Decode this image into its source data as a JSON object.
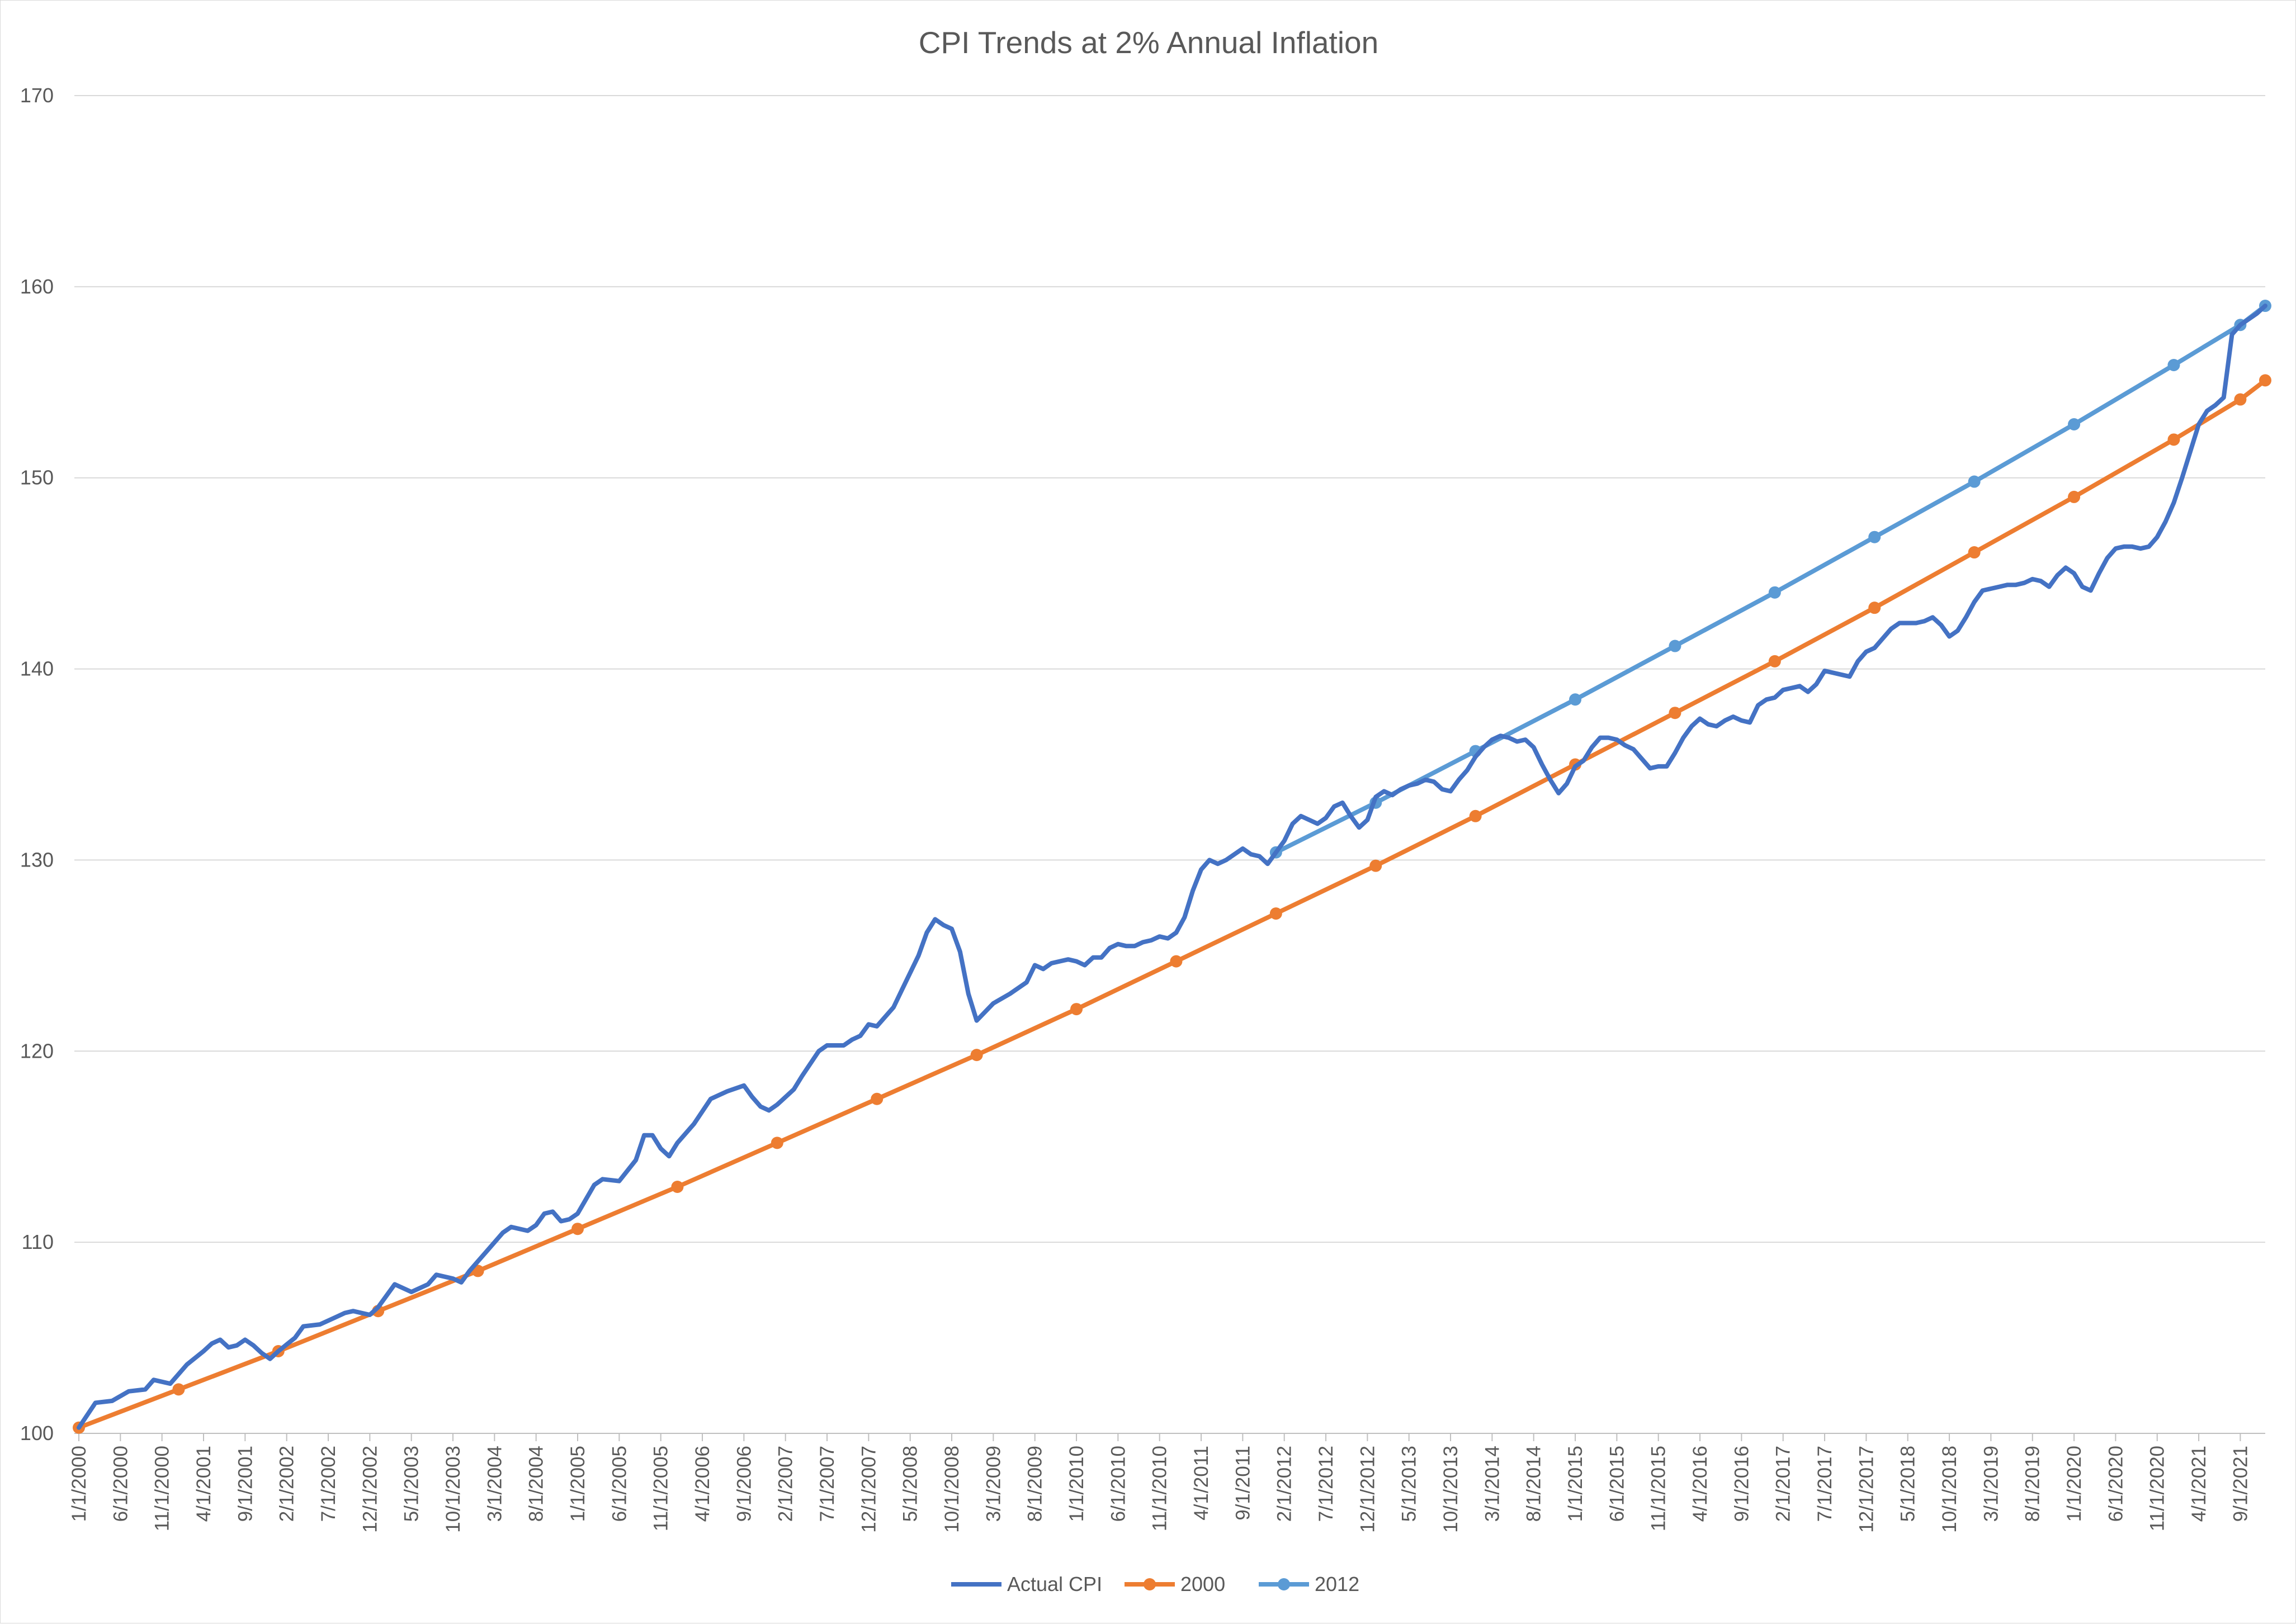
{
  "chart_data": {
    "type": "line",
    "title": "CPI Trends at 2% Annual Inflation",
    "xlabel": "",
    "ylabel": "",
    "ylim": [
      100,
      170
    ],
    "y_ticks": [
      "100",
      "110",
      "120",
      "130",
      "140",
      "150",
      "160",
      "170"
    ],
    "grid": true,
    "legend_position": "bottom",
    "x_start": "2000-01",
    "x_end": "2021-12",
    "x_tick_labels": [
      "1/1/2000",
      "6/1/2000",
      "11/1/2000",
      "4/1/2001",
      "9/1/2001",
      "2/1/2002",
      "7/1/2002",
      "12/1/2002",
      "5/1/2003",
      "10/1/2003",
      "3/1/2004",
      "8/1/2004",
      "1/1/2005",
      "6/1/2005",
      "11/1/2005",
      "4/1/2006",
      "9/1/2006",
      "2/1/2007",
      "7/1/2007",
      "12/1/2007",
      "5/1/2008",
      "10/1/2008",
      "3/1/2009",
      "8/1/2009",
      "1/1/2010",
      "6/1/2010",
      "11/1/2010",
      "4/1/2011",
      "9/1/2011",
      "2/1/2012",
      "7/1/2012",
      "12/1/2012",
      "5/1/2013",
      "10/1/2013",
      "3/1/2014",
      "8/1/2014",
      "1/1/2015",
      "6/1/2015",
      "11/1/2015",
      "4/1/2016",
      "9/1/2016",
      "2/1/2017",
      "7/1/2017",
      "12/1/2017",
      "5/1/2018",
      "10/1/2018",
      "3/1/2019",
      "8/1/2019",
      "1/1/2020",
      "6/1/2020",
      "11/1/2020",
      "4/1/2021",
      "9/1/2021"
    ],
    "series": [
      {
        "name": "Actual CPI",
        "color": "#4472C4",
        "markers": false,
        "points": [
          [
            "2000-01",
            100.3
          ],
          [
            "2000-03",
            101.6
          ],
          [
            "2000-05",
            101.7
          ],
          [
            "2000-07",
            102.2
          ],
          [
            "2000-09",
            102.3
          ],
          [
            "2000-10",
            102.8
          ],
          [
            "2000-12",
            102.6
          ],
          [
            "2001-02",
            103.6
          ],
          [
            "2001-04",
            104.3
          ],
          [
            "2001-05",
            104.7
          ],
          [
            "2001-06",
            104.9
          ],
          [
            "2001-07",
            104.5
          ],
          [
            "2001-08",
            104.6
          ],
          [
            "2001-09",
            104.9
          ],
          [
            "2001-10",
            104.6
          ],
          [
            "2001-11",
            104.2
          ],
          [
            "2001-12",
            103.9
          ],
          [
            "2002-01",
            104.3
          ],
          [
            "2002-03",
            105.0
          ],
          [
            "2002-04",
            105.6
          ],
          [
            "2002-06",
            105.7
          ],
          [
            "2002-08",
            106.1
          ],
          [
            "2002-09",
            106.3
          ],
          [
            "2002-10",
            106.4
          ],
          [
            "2002-12",
            106.2
          ],
          [
            "2003-01",
            106.6
          ],
          [
            "2003-03",
            107.8
          ],
          [
            "2003-05",
            107.4
          ],
          [
            "2003-07",
            107.8
          ],
          [
            "2003-08",
            108.3
          ],
          [
            "2003-10",
            108.1
          ],
          [
            "2003-11",
            107.9
          ],
          [
            "2003-12",
            108.5
          ],
          [
            "2004-01",
            109.0
          ],
          [
            "2004-02",
            109.5
          ],
          [
            "2004-04",
            110.5
          ],
          [
            "2004-05",
            110.8
          ],
          [
            "2004-07",
            110.6
          ],
          [
            "2004-08",
            110.9
          ],
          [
            "2004-09",
            111.5
          ],
          [
            "2004-10",
            111.6
          ],
          [
            "2004-11",
            111.1
          ],
          [
            "2004-12",
            111.2
          ],
          [
            "2005-01",
            111.5
          ],
          [
            "2005-03",
            113.0
          ],
          [
            "2005-04",
            113.3
          ],
          [
            "2005-06",
            113.2
          ],
          [
            "2005-08",
            114.3
          ],
          [
            "2005-09",
            115.6
          ],
          [
            "2005-10",
            115.6
          ],
          [
            "2005-11",
            114.9
          ],
          [
            "2005-12",
            114.5
          ],
          [
            "2006-01",
            115.2
          ],
          [
            "2006-03",
            116.2
          ],
          [
            "2006-05",
            117.5
          ],
          [
            "2006-07",
            117.9
          ],
          [
            "2006-09",
            118.2
          ],
          [
            "2006-10",
            117.6
          ],
          [
            "2006-11",
            117.1
          ],
          [
            "2006-12",
            116.9
          ],
          [
            "2007-01",
            117.2
          ],
          [
            "2007-03",
            118.0
          ],
          [
            "2007-04",
            118.7
          ],
          [
            "2007-06",
            120.0
          ],
          [
            "2007-07",
            120.3
          ],
          [
            "2007-09",
            120.3
          ],
          [
            "2007-10",
            120.6
          ],
          [
            "2007-11",
            120.8
          ],
          [
            "2007-12",
            121.4
          ],
          [
            "2008-01",
            121.3
          ],
          [
            "2008-03",
            122.3
          ],
          [
            "2008-04",
            123.2
          ],
          [
            "2008-06",
            125.0
          ],
          [
            "2008-07",
            126.2
          ],
          [
            "2008-08",
            126.9
          ],
          [
            "2008-09",
            126.6
          ],
          [
            "2008-10",
            126.4
          ],
          [
            "2008-11",
            125.2
          ],
          [
            "2008-12",
            123.0
          ],
          [
            "2009-01",
            121.6
          ],
          [
            "2009-03",
            122.5
          ],
          [
            "2009-05",
            123.0
          ],
          [
            "2009-07",
            123.6
          ],
          [
            "2009-08",
            124.5
          ],
          [
            "2009-09",
            124.3
          ],
          [
            "2009-10",
            124.6
          ],
          [
            "2009-12",
            124.8
          ],
          [
            "2010-01",
            124.7
          ],
          [
            "2010-02",
            124.5
          ],
          [
            "2010-03",
            124.9
          ],
          [
            "2010-04",
            124.9
          ],
          [
            "2010-05",
            125.4
          ],
          [
            "2010-06",
            125.6
          ],
          [
            "2010-07",
            125.5
          ],
          [
            "2010-08",
            125.5
          ],
          [
            "2010-09",
            125.7
          ],
          [
            "2010-10",
            125.8
          ],
          [
            "2010-11",
            126.0
          ],
          [
            "2010-12",
            125.9
          ],
          [
            "2011-01",
            126.2
          ],
          [
            "2011-02",
            127.0
          ],
          [
            "2011-03",
            128.4
          ],
          [
            "2011-04",
            129.5
          ],
          [
            "2011-05",
            130.0
          ],
          [
            "2011-06",
            129.8
          ],
          [
            "2011-07",
            130.0
          ],
          [
            "2011-08",
            130.3
          ],
          [
            "2011-09",
            130.6
          ],
          [
            "2011-10",
            130.3
          ],
          [
            "2011-11",
            130.2
          ],
          [
            "2011-12",
            129.8
          ],
          [
            "2012-01",
            130.4
          ],
          [
            "2012-02",
            131.0
          ],
          [
            "2012-03",
            131.9
          ],
          [
            "2012-04",
            132.3
          ],
          [
            "2012-06",
            131.9
          ],
          [
            "2012-07",
            132.2
          ],
          [
            "2012-08",
            132.8
          ],
          [
            "2012-09",
            133.0
          ],
          [
            "2012-10",
            132.3
          ],
          [
            "2012-11",
            131.7
          ],
          [
            "2012-12",
            132.1
          ],
          [
            "2013-01",
            133.3
          ],
          [
            "2013-02",
            133.6
          ],
          [
            "2013-03",
            133.4
          ],
          [
            "2013-04",
            133.7
          ],
          [
            "2013-05",
            133.9
          ],
          [
            "2013-06",
            134.0
          ],
          [
            "2013-07",
            134.2
          ],
          [
            "2013-08",
            134.1
          ],
          [
            "2013-09",
            133.7
          ],
          [
            "2013-10",
            133.6
          ],
          [
            "2013-11",
            134.2
          ],
          [
            "2013-12",
            134.7
          ],
          [
            "2014-01",
            135.4
          ],
          [
            "2014-02",
            135.9
          ],
          [
            "2014-03",
            136.3
          ],
          [
            "2014-04",
            136.5
          ],
          [
            "2014-05",
            136.4
          ],
          [
            "2014-06",
            136.2
          ],
          [
            "2014-07",
            136.3
          ],
          [
            "2014-08",
            135.9
          ],
          [
            "2014-09",
            135.0
          ],
          [
            "2014-10",
            134.2
          ],
          [
            "2014-11",
            133.5
          ],
          [
            "2014-12",
            134.0
          ],
          [
            "2015-01",
            134.9
          ],
          [
            "2015-02",
            135.2
          ],
          [
            "2015-03",
            135.9
          ],
          [
            "2015-04",
            136.4
          ],
          [
            "2015-05",
            136.4
          ],
          [
            "2015-06",
            136.3
          ],
          [
            "2015-07",
            136.0
          ],
          [
            "2015-08",
            135.8
          ],
          [
            "2015-09",
            135.3
          ],
          [
            "2015-10",
            134.8
          ],
          [
            "2015-11",
            134.9
          ],
          [
            "2015-12",
            134.9
          ],
          [
            "2016-01",
            135.6
          ],
          [
            "2016-02",
            136.4
          ],
          [
            "2016-03",
            137.0
          ],
          [
            "2016-04",
            137.4
          ],
          [
            "2016-05",
            137.1
          ],
          [
            "2016-06",
            137.0
          ],
          [
            "2016-07",
            137.3
          ],
          [
            "2016-08",
            137.5
          ],
          [
            "2016-09",
            137.3
          ],
          [
            "2016-10",
            137.2
          ],
          [
            "2016-11",
            138.1
          ],
          [
            "2016-12",
            138.4
          ],
          [
            "2017-01",
            138.5
          ],
          [
            "2017-02",
            138.9
          ],
          [
            "2017-03",
            139.0
          ],
          [
            "2017-04",
            139.1
          ],
          [
            "2017-05",
            138.8
          ],
          [
            "2017-06",
            139.2
          ],
          [
            "2017-07",
            139.9
          ],
          [
            "2017-08",
            139.8
          ],
          [
            "2017-09",
            139.7
          ],
          [
            "2017-10",
            139.6
          ],
          [
            "2017-11",
            140.4
          ],
          [
            "2017-12",
            140.9
          ],
          [
            "2018-01",
            141.1
          ],
          [
            "2018-02",
            141.6
          ],
          [
            "2018-03",
            142.1
          ],
          [
            "2018-04",
            142.4
          ],
          [
            "2018-05",
            142.4
          ],
          [
            "2018-06",
            142.4
          ],
          [
            "2018-07",
            142.5
          ],
          [
            "2018-08",
            142.7
          ],
          [
            "2018-09",
            142.3
          ],
          [
            "2018-10",
            141.7
          ],
          [
            "2018-11",
            142.0
          ],
          [
            "2018-12",
            142.7
          ],
          [
            "2019-01",
            143.5
          ],
          [
            "2019-02",
            144.1
          ],
          [
            "2019-03",
            144.2
          ],
          [
            "2019-04",
            144.3
          ],
          [
            "2019-05",
            144.4
          ],
          [
            "2019-06",
            144.4
          ],
          [
            "2019-07",
            144.5
          ],
          [
            "2019-08",
            144.7
          ],
          [
            "2019-09",
            144.6
          ],
          [
            "2019-10",
            144.3
          ],
          [
            "2019-11",
            144.9
          ],
          [
            "2019-12",
            145.3
          ],
          [
            "2020-01",
            145.0
          ],
          [
            "2020-02",
            144.3
          ],
          [
            "2020-03",
            144.1
          ],
          [
            "2020-04",
            145.0
          ],
          [
            "2020-05",
            145.8
          ],
          [
            "2020-06",
            146.3
          ],
          [
            "2020-07",
            146.4
          ],
          [
            "2020-08",
            146.4
          ],
          [
            "2020-09",
            146.3
          ],
          [
            "2020-10",
            146.4
          ],
          [
            "2020-11",
            146.9
          ],
          [
            "2020-12",
            147.7
          ],
          [
            "2021-01",
            148.7
          ],
          [
            "2021-02",
            150.0
          ],
          [
            "2021-03",
            151.4
          ],
          [
            "2021-04",
            152.8
          ],
          [
            "2021-05",
            153.5
          ],
          [
            "2021-06",
            153.8
          ],
          [
            "2021-07",
            154.2
          ],
          [
            "2021-08",
            157.5
          ],
          [
            "2021-09",
            158.0
          ],
          [
            "2021-10",
            158.3
          ],
          [
            "2021-11",
            158.6
          ],
          [
            "2021-12",
            159.0
          ]
        ]
      },
      {
        "name": "2000",
        "color": "#ED7D31",
        "markers": true,
        "points": [
          [
            "2000-01",
            100.3
          ],
          [
            "2001-01",
            102.3
          ],
          [
            "2002-01",
            104.3
          ],
          [
            "2003-01",
            106.4
          ],
          [
            "2004-01",
            108.5
          ],
          [
            "2005-01",
            110.7
          ],
          [
            "2006-01",
            112.9
          ],
          [
            "2007-01",
            115.2
          ],
          [
            "2008-01",
            117.5
          ],
          [
            "2009-01",
            119.8
          ],
          [
            "2010-01",
            122.2
          ],
          [
            "2011-01",
            124.7
          ],
          [
            "2012-01",
            127.2
          ],
          [
            "2013-01",
            129.7
          ],
          [
            "2014-01",
            132.3
          ],
          [
            "2015-01",
            135.0
          ],
          [
            "2016-01",
            137.7
          ],
          [
            "2017-01",
            140.4
          ],
          [
            "2018-01",
            143.2
          ],
          [
            "2019-01",
            146.1
          ],
          [
            "2020-01",
            149.0
          ],
          [
            "2021-01",
            152.0
          ],
          [
            "2021-09",
            154.1
          ],
          [
            "2021-12",
            155.1
          ]
        ]
      },
      {
        "name": "2012",
        "color": "#5B9BD5",
        "markers": true,
        "points": [
          [
            "2012-01",
            130.4
          ],
          [
            "2013-01",
            133.0
          ],
          [
            "2014-01",
            135.7
          ],
          [
            "2015-01",
            138.4
          ],
          [
            "2016-01",
            141.2
          ],
          [
            "2017-01",
            144.0
          ],
          [
            "2018-01",
            146.9
          ],
          [
            "2019-01",
            149.8
          ],
          [
            "2020-01",
            152.8
          ],
          [
            "2021-01",
            155.9
          ],
          [
            "2021-09",
            158.0
          ],
          [
            "2021-12",
            159.0
          ]
        ]
      }
    ]
  }
}
